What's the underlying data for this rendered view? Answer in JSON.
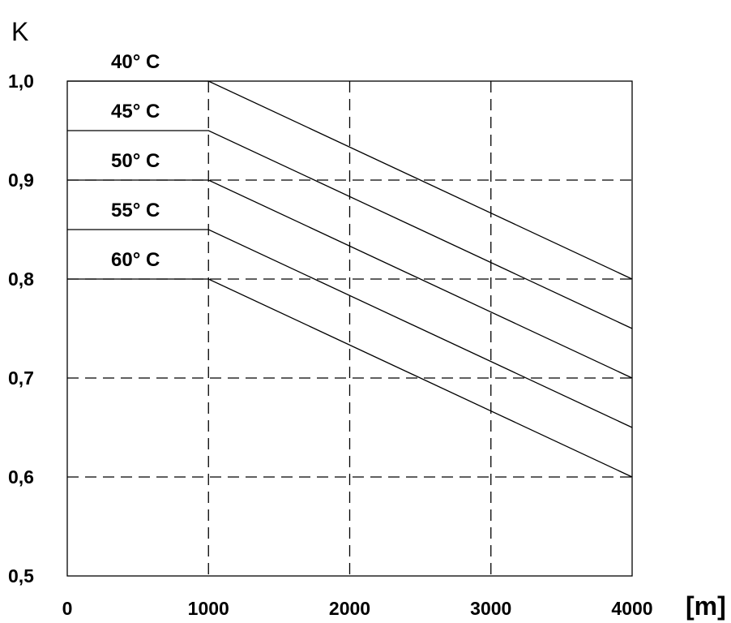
{
  "chart_data": {
    "type": "line",
    "ylabel": "K",
    "xlabel": "[m]",
    "xlim": [
      0,
      4000
    ],
    "ylim": [
      0.5,
      1.0
    ],
    "x_ticks": [
      0,
      1000,
      2000,
      3000,
      4000
    ],
    "x_tick_labels": [
      "0",
      "1000",
      "2000",
      "3000",
      "4000"
    ],
    "y_ticks": [
      0.5,
      0.6,
      0.7,
      0.8,
      0.9,
      1.0
    ],
    "y_tick_labels": [
      "0,5",
      "0,6",
      "0,7",
      "0,8",
      "0,9",
      "1,0"
    ],
    "grid": true,
    "series": [
      {
        "name": "40° C",
        "x": [
          0,
          1000,
          4000
        ],
        "y": [
          1.0,
          1.0,
          0.8
        ]
      },
      {
        "name": "45° C",
        "x": [
          0,
          1000,
          4000
        ],
        "y": [
          0.95,
          0.95,
          0.75
        ]
      },
      {
        "name": "50° C",
        "x": [
          0,
          1000,
          4000
        ],
        "y": [
          0.9,
          0.9,
          0.7
        ]
      },
      {
        "name": "55° C",
        "x": [
          0,
          1000,
          4000
        ],
        "y": [
          0.85,
          0.85,
          0.65
        ]
      },
      {
        "name": "60° C",
        "x": [
          0,
          1000,
          4000
        ],
        "y": [
          0.8,
          0.8,
          0.6
        ]
      }
    ]
  }
}
